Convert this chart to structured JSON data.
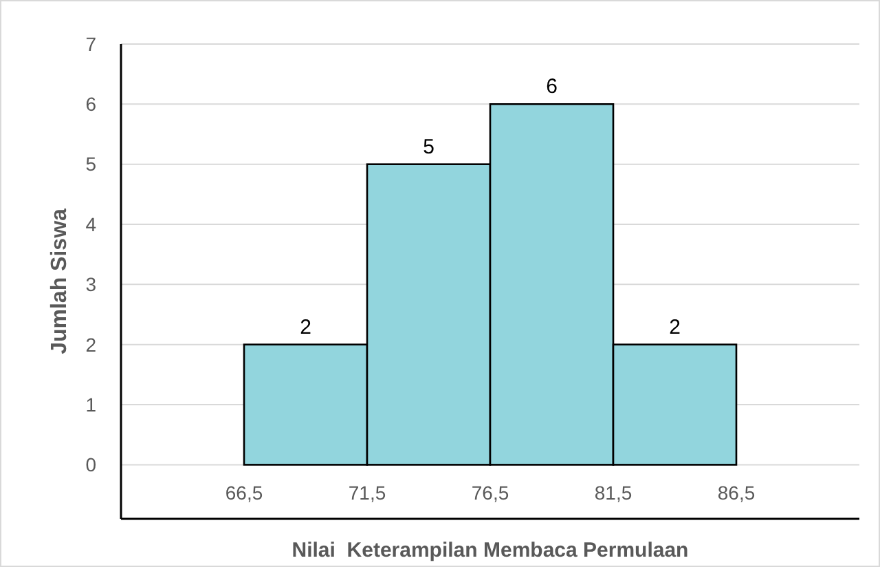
{
  "chart_data": {
    "type": "histogram",
    "xlabel": "Nilai  Keterampilan Membaca Permulaan",
    "ylabel": "Jumlah Siswa",
    "bins": [
      66.5,
      71.5,
      76.5,
      81.5,
      86.5
    ],
    "values": [
      2,
      5,
      6,
      2
    ],
    "color": "#92d5dd",
    "xlim": [
      61.5,
      91.5
    ],
    "xticks": [
      {
        "value": 66.5,
        "label": "66,5"
      },
      {
        "value": 71.5,
        "label": "71,5"
      },
      {
        "value": 76.5,
        "label": "76,5"
      },
      {
        "value": 81.5,
        "label": "81,5"
      },
      {
        "value": 86.5,
        "label": "86,5"
      }
    ],
    "ylim": [
      -0.9,
      7
    ],
    "yticks": [
      0,
      1,
      2,
      3,
      4,
      5,
      6,
      7
    ],
    "grid": "y",
    "data_labels": true
  }
}
